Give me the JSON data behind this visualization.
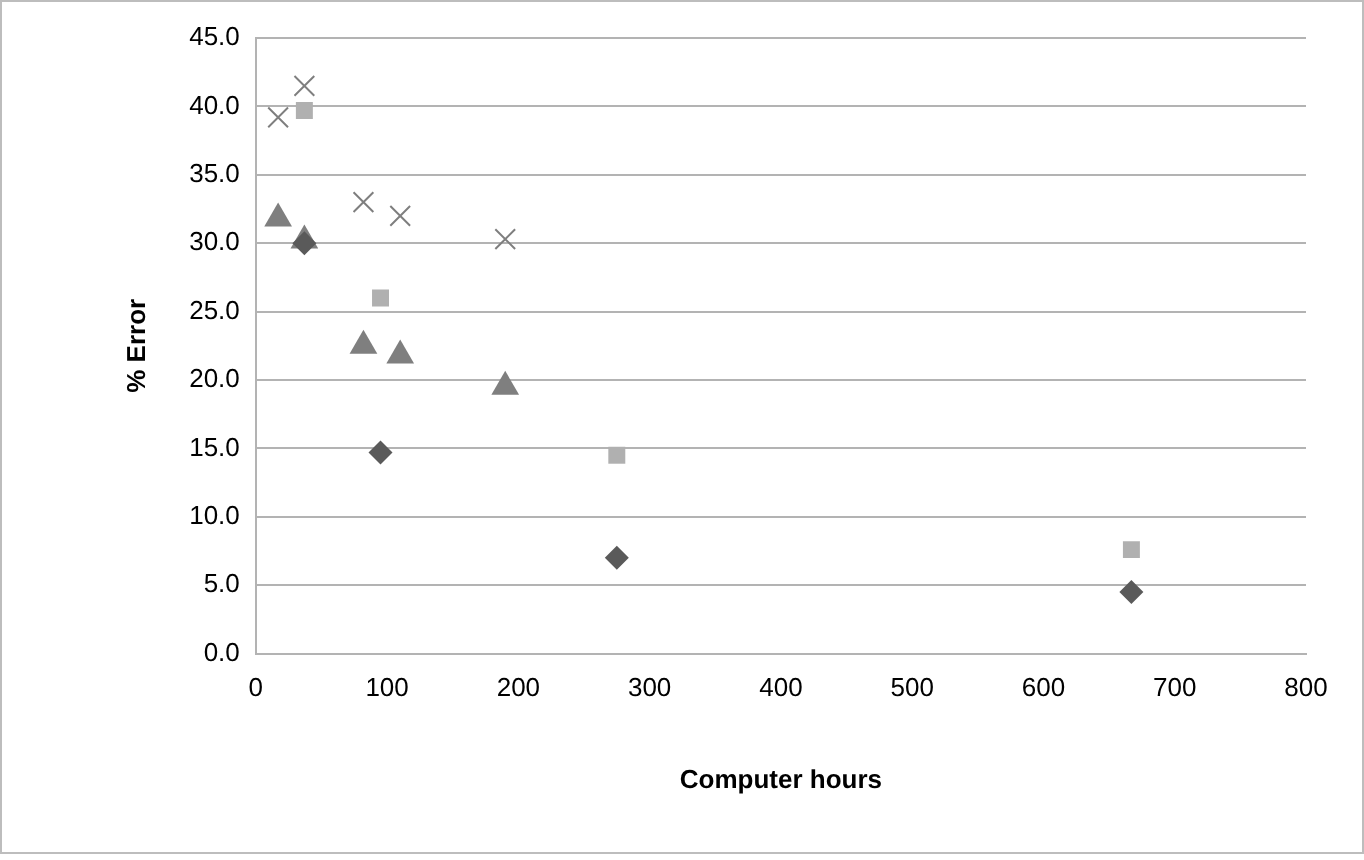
{
  "chart_data": {
    "type": "scatter",
    "xlabel": "Computer hours",
    "ylabel": "% Error",
    "series": [
      {
        "color": "#5a5a5a",
        "marker": "diamond",
        "x": [
          37,
          95,
          275,
          667
        ],
        "values": [
          30,
          14.7,
          7,
          4.5
        ]
      },
      {
        "color": "#b0b0b0",
        "marker": "square",
        "x": [
          37,
          95,
          275,
          667
        ],
        "values": [
          39.7,
          26,
          14.5,
          7.6
        ]
      },
      {
        "color": "#7f7f7f",
        "marker": "triangle",
        "x": [
          17,
          37,
          82,
          110,
          190
        ],
        "values": [
          31.8,
          30.2,
          22.5,
          21.8,
          19.5
        ]
      },
      {
        "color": "#7f7f7f",
        "marker": "cross",
        "x": [
          17,
          37,
          82,
          110,
          190
        ],
        "values": [
          39.2,
          41.5,
          33,
          32,
          30.3
        ]
      }
    ],
    "xlim": [
      0,
      800
    ],
    "xticks": [
      0,
      100,
      200,
      300,
      400,
      500,
      600,
      700,
      800
    ],
    "ylim": [
      0,
      45
    ],
    "yticks": [
      {
        "value": 0,
        "label": "0.0"
      },
      {
        "value": 5,
        "label": "5.0"
      },
      {
        "value": 10,
        "label": "10.0"
      },
      {
        "value": 15,
        "label": "15.0"
      },
      {
        "value": 20,
        "label": "20.0"
      },
      {
        "value": 25,
        "label": "25.0"
      },
      {
        "value": 30,
        "label": "30.0"
      },
      {
        "value": 35,
        "label": "35.0"
      },
      {
        "value": 40,
        "label": "40.0"
      },
      {
        "value": 45,
        "label": "45.0"
      }
    ],
    "grid": "y",
    "legend": false
  }
}
